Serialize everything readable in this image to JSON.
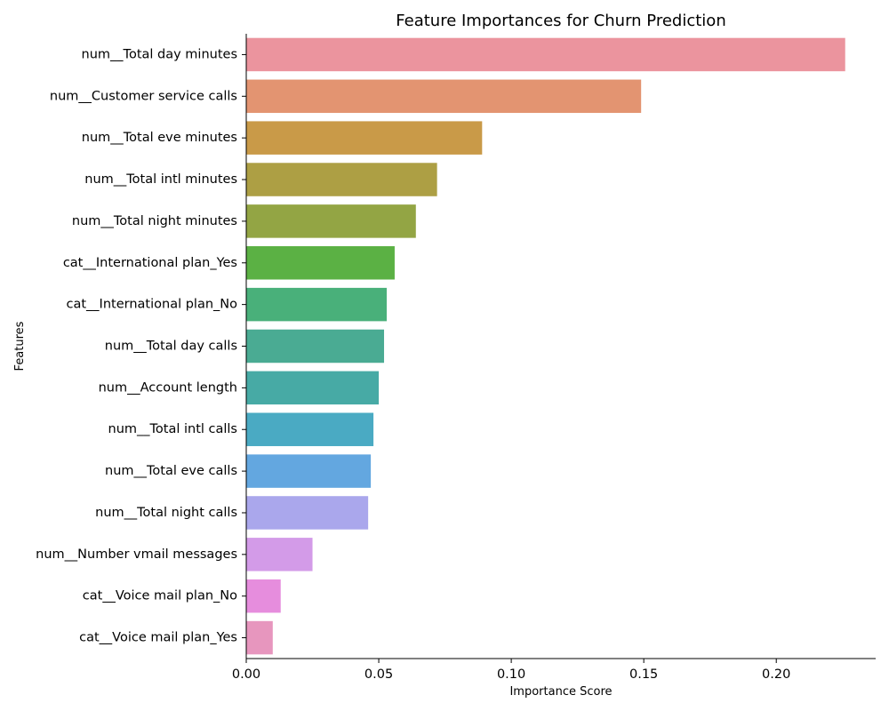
{
  "chart_data": {
    "type": "bar",
    "orientation": "horizontal",
    "title": "Feature Importances for Churn Prediction",
    "xlabel": "Importance Score",
    "ylabel": "Features",
    "xlim": [
      0,
      0.2375
    ],
    "xticks": [
      0.0,
      0.05,
      0.1,
      0.15,
      0.2
    ],
    "xtick_labels": [
      "0.00",
      "0.05",
      "0.10",
      "0.15",
      "0.20"
    ],
    "grid": false,
    "categories": [
      "num__Total day minutes",
      "num__Customer service calls",
      "num__Total eve minutes",
      "num__Total intl minutes",
      "num__Total night minutes",
      "cat__International plan_Yes",
      "cat__International plan_No",
      "num__Total day calls",
      "num__Account length",
      "num__Total intl calls",
      "num__Total eve calls",
      "num__Total night calls",
      "num__Number vmail messages",
      "cat__Voice mail plan_No",
      "cat__Voice mail plan_Yes"
    ],
    "values": [
      0.226,
      0.149,
      0.089,
      0.072,
      0.064,
      0.056,
      0.053,
      0.052,
      0.05,
      0.048,
      0.047,
      0.046,
      0.025,
      0.013,
      0.01
    ],
    "colors": [
      "#eb949e",
      "#e39471",
      "#c99a48",
      "#ad9f44",
      "#93a544",
      "#5bb144",
      "#49b07a",
      "#4aab93",
      "#47aaa5",
      "#4aaac3",
      "#63a7e0",
      "#aaa7ec",
      "#d39be8",
      "#e68ddd",
      "#e796be"
    ]
  }
}
